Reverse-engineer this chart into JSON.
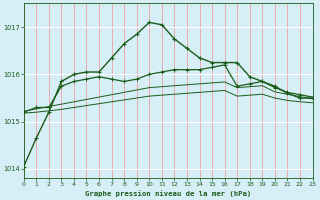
{
  "title": "Graphe pression niveau de la mer (hPa)",
  "background_color": "#d6eef5",
  "grid_color_v": "#f0a0a0",
  "grid_color_h": "#ffffff",
  "line_color": "#1a5c1a",
  "ylim": [
    1013.8,
    1017.5
  ],
  "yticks": [
    1014,
    1015,
    1016,
    1017
  ],
  "xlim": [
    0,
    23
  ],
  "xticks": [
    0,
    1,
    2,
    3,
    4,
    5,
    6,
    7,
    8,
    9,
    10,
    11,
    12,
    13,
    14,
    15,
    16,
    17,
    18,
    19,
    20,
    21,
    22,
    23
  ],
  "series": [
    [
      1014.05,
      1014.65,
      1015.2,
      1015.85,
      1016.0,
      1016.05,
      1016.05,
      1016.35,
      1016.65,
      1016.85,
      1017.1,
      1017.05,
      1016.75,
      1016.55,
      1016.35,
      1016.25,
      1016.25,
      1016.25,
      1015.95,
      1015.85,
      1015.75,
      1015.6,
      1015.5,
      1015.5
    ],
    [
      1015.2,
      1015.3,
      1015.3,
      1015.75,
      1015.85,
      1015.9,
      1015.95,
      1015.9,
      1015.85,
      1015.9,
      1016.0,
      1016.05,
      1016.1,
      1016.1,
      1016.1,
      1016.15,
      1016.2,
      1015.75,
      1015.8,
      1015.85,
      1015.72,
      1015.62,
      1015.57,
      1015.52
    ],
    [
      1015.22,
      1015.27,
      1015.32,
      1015.37,
      1015.42,
      1015.47,
      1015.52,
      1015.57,
      1015.62,
      1015.67,
      1015.72,
      1015.74,
      1015.76,
      1015.78,
      1015.8,
      1015.82,
      1015.84,
      1015.72,
      1015.74,
      1015.76,
      1015.63,
      1015.58,
      1015.53,
      1015.48
    ],
    [
      1015.18,
      1015.2,
      1015.23,
      1015.26,
      1015.3,
      1015.34,
      1015.38,
      1015.42,
      1015.46,
      1015.5,
      1015.54,
      1015.56,
      1015.58,
      1015.6,
      1015.62,
      1015.64,
      1015.66,
      1015.54,
      1015.56,
      1015.58,
      1015.5,
      1015.45,
      1015.42,
      1015.4
    ]
  ]
}
